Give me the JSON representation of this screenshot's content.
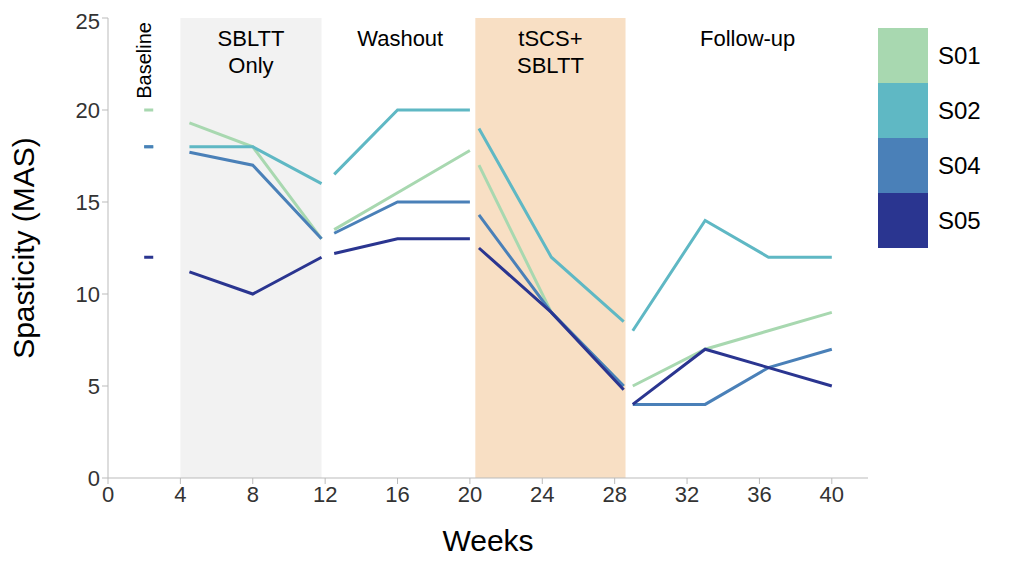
{
  "chart_data": {
    "type": "line",
    "x_label": "Weeks",
    "y_label": "Spasticity (MAS)",
    "x": [
      2,
      2.5,
      3,
      4.5,
      8,
      11.8,
      12.1,
      12.5,
      16,
      20,
      20.2,
      20.5,
      24.5,
      28.5,
      28.7,
      29,
      33,
      36.5,
      40
    ],
    "xlim": [
      0,
      42
    ],
    "xticks": [
      0,
      4,
      8,
      12,
      16,
      20,
      24,
      28,
      32,
      36,
      40
    ],
    "ylim": [
      0,
      25
    ],
    "yticks": [
      0,
      5,
      10,
      15,
      20,
      25
    ],
    "grid": false,
    "legend": "right",
    "phases": [
      {
        "label": "Baseline",
        "start": 1,
        "end": 3
      },
      {
        "label": "SBLTT Only",
        "start": 4,
        "end": 11.8,
        "color": "#f2f2f2"
      },
      {
        "label": "Washout",
        "start": 12,
        "end": 20.3
      },
      {
        "label": "tSCS+ SBLTT",
        "start": 20.3,
        "end": 28.6,
        "color": "#f8dfc4"
      },
      {
        "label": "Follow-up",
        "start": 28.7,
        "end": 42
      }
    ],
    "series": [
      {
        "name": "S01",
        "color": "#a8d8b0",
        "values": [
          20,
          20,
          null,
          19.3,
          18,
          13,
          null,
          13.5,
          15.5,
          17.8,
          null,
          17,
          9,
          5,
          null,
          5,
          7,
          8,
          9
        ]
      },
      {
        "name": "S02",
        "color": "#5fb8c4",
        "values": [
          18,
          18,
          null,
          18,
          18,
          16,
          null,
          16.5,
          20,
          20,
          null,
          19,
          12,
          8.5,
          null,
          8,
          14,
          12,
          12
        ]
      },
      {
        "name": "S04",
        "color": "#4a80b8",
        "values": [
          18,
          18,
          null,
          17.7,
          17,
          13,
          null,
          13.3,
          15,
          15,
          null,
          14.3,
          9,
          5,
          null,
          4,
          4,
          6,
          7
        ]
      },
      {
        "name": "S05",
        "color": "#2a3590",
        "values": [
          12,
          12,
          null,
          11.2,
          10,
          12,
          null,
          12.2,
          13,
          13,
          null,
          12.5,
          9,
          4.8,
          null,
          4,
          7,
          6,
          5
        ]
      }
    ]
  }
}
